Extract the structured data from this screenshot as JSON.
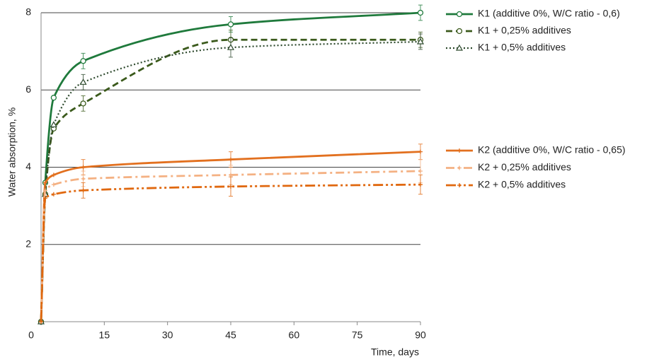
{
  "chart_data": {
    "type": "line",
    "x_label": "Time, days",
    "y_label": "Water absorption, %",
    "x": [
      0,
      1,
      3,
      10,
      45,
      90
    ],
    "xlim": [
      0,
      90
    ],
    "xticks": [
      0,
      15,
      30,
      45,
      60,
      75,
      90
    ],
    "ylim": [
      0,
      8
    ],
    "yticks": [
      2,
      4,
      6,
      8
    ],
    "grid": true,
    "series": [
      {
        "name": "K1 (additive 0%, W/C ratio - 0,6)",
        "color": "#1f7a3c",
        "dash": "solid",
        "marker": "circle",
        "values": [
          0,
          3.6,
          5.8,
          6.75,
          7.7,
          8.0
        ],
        "errors": [
          0,
          0,
          0,
          0.2,
          0.2,
          0.2
        ]
      },
      {
        "name": "K1 + 0,25% additives",
        "color": "#3b5a1c",
        "dash": "dashed",
        "marker": "circle",
        "values": [
          0,
          3.3,
          5.0,
          5.65,
          7.3,
          7.3
        ],
        "errors": [
          0,
          0,
          0,
          0.2,
          0.25,
          0.2
        ]
      },
      {
        "name": "K1 + 0,5% additives",
        "color": "#2e4a2e",
        "dash": "dotted",
        "marker": "triangle",
        "values": [
          0,
          3.3,
          5.1,
          6.2,
          7.1,
          7.25
        ],
        "errors": [
          0,
          0,
          0,
          0.2,
          0.25,
          0.2
        ]
      },
      {
        "name": "K2 (additive 0%, W/C ratio - 0,65)",
        "color": "#e2701f",
        "dash": "solid",
        "marker": "plus",
        "values": [
          0,
          3.6,
          3.8,
          4.0,
          4.2,
          4.4
        ],
        "errors": [
          0,
          0,
          0,
          0.2,
          0.2,
          0.2
        ]
      },
      {
        "name": "K2 + 0,25% additives",
        "color": "#f4b183",
        "dash": "dashdot",
        "marker": "plus",
        "values": [
          0,
          3.4,
          3.55,
          3.7,
          3.8,
          3.9
        ],
        "errors": [
          0,
          0,
          0,
          0.2,
          0.25,
          0.3
        ]
      },
      {
        "name": "K2 + 0,5% additives",
        "color": "#e0680f",
        "dash": "dashdotdot",
        "marker": "plus",
        "values": [
          0,
          3.2,
          3.3,
          3.4,
          3.5,
          3.55
        ],
        "errors": [
          0,
          0,
          0,
          0.2,
          0.25,
          0.25
        ]
      }
    ]
  }
}
